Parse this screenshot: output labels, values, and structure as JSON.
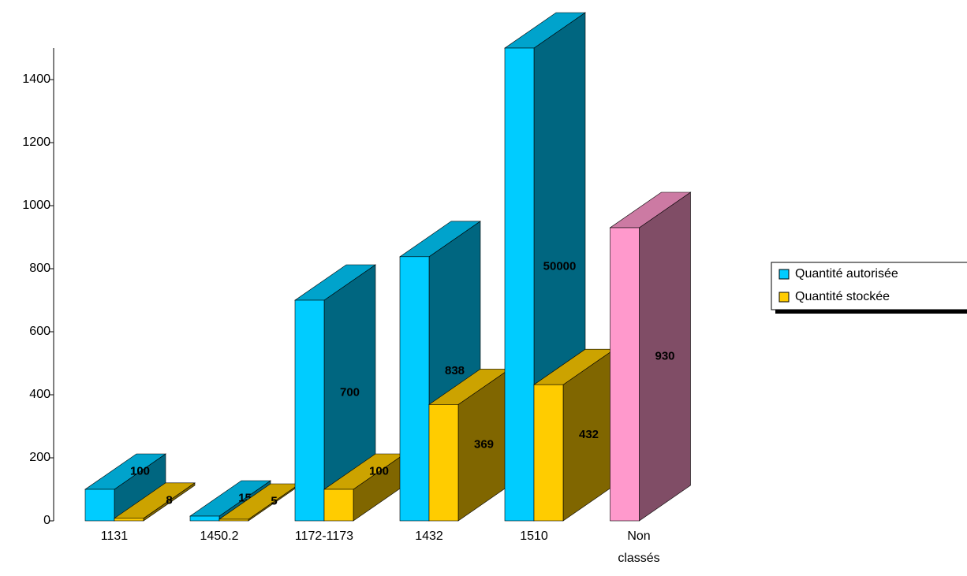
{
  "chart_data": {
    "type": "bar3d",
    "categories": [
      "1131",
      "1450.2",
      "1172-1173",
      "1432",
      "1510",
      "Non classés"
    ],
    "series": [
      {
        "name": "Quantité autorisée",
        "color": "#00ccff",
        "colors": [
          "#00ccff",
          "#00ccff",
          "#00ccff",
          "#00ccff",
          "#00ccff",
          "#ff99cc"
        ],
        "values": [
          100,
          15,
          700,
          838,
          50000,
          930
        ]
      },
      {
        "name": "Quantité stockée",
        "color": "#ffcc00",
        "values": [
          8,
          5,
          100,
          369,
          432,
          null
        ]
      }
    ],
    "ylim": [
      0,
      1500
    ],
    "yticks": [
      0,
      200,
      400,
      600,
      800,
      1000,
      1200,
      1400
    ],
    "grid": false,
    "legend": "right"
  }
}
